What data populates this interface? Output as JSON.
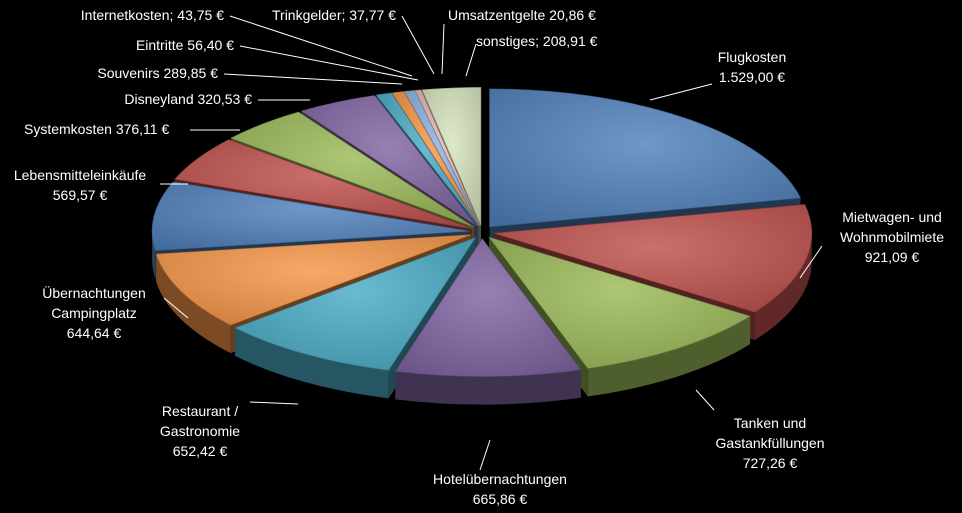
{
  "chart_data": {
    "type": "pie",
    "style": "exploded-3d",
    "title": "",
    "legend": "none",
    "slices": [
      {
        "name": "Flugkosten",
        "value": 1529.0,
        "label": [
          "Flugkosten",
          "1.529,00 €"
        ],
        "color": "#4f81bd"
      },
      {
        "name": "Mietwagen- und Wohnmobilmiete",
        "value": 921.09,
        "label": [
          "Mietwagen- und",
          "Wohnmobilmiete",
          "921,09 €"
        ],
        "color": "#c0504d"
      },
      {
        "name": "Tanken und Gastankfüllungen",
        "value": 727.26,
        "label": [
          "Tanken und",
          "Gastankfüllungen",
          "727,26 €"
        ],
        "color": "#9bbb59"
      },
      {
        "name": "Hotelübernachtungen",
        "value": 665.86,
        "label": [
          "Hotelübernachtungen",
          "665,86 €"
        ],
        "color": "#8064a2"
      },
      {
        "name": "Restaurant / Gastronomie",
        "value": 652.42,
        "label": [
          "Restaurant /",
          "Gastronomie",
          "652,42 €"
        ],
        "color": "#4bacc6"
      },
      {
        "name": "Übernachtungen Campingplatz",
        "value": 644.64,
        "label": [
          "Übernachtungen",
          "Campingplatz",
          "644,64 €"
        ],
        "color": "#f79646"
      },
      {
        "name": "Lebensmitteleinkäufe",
        "value": 569.57,
        "label": [
          "Lebensmitteleinkäufe",
          "569,57 €"
        ],
        "color": "#4f81bd"
      },
      {
        "name": "Systemkosten",
        "value": 376.11,
        "label": [
          "Systemkosten 376,11 €"
        ],
        "color": "#c0504d"
      },
      {
        "name": "Disneyland",
        "value": 320.53,
        "label": [
          "Disneyland 320,53 €"
        ],
        "color": "#9bbb59"
      },
      {
        "name": "Souvenirs",
        "value": 289.85,
        "label": [
          "Souvenirs 289,85 €"
        ],
        "color": "#8064a2"
      },
      {
        "name": "Eintritte",
        "value": 56.4,
        "label": [
          "Eintritte 56,40 €"
        ],
        "color": "#4bacc6"
      },
      {
        "name": "Internetkosten",
        "value": 43.75,
        "label": [
          "Internetkosten; 43,75 €"
        ],
        "color": "#f79646"
      },
      {
        "name": "Trinkgelder",
        "value": 37.77,
        "label": [
          "Trinkgelder; 37,77 €"
        ],
        "color": "#8db3e2"
      },
      {
        "name": "Umsatzentgelte",
        "value": 20.86,
        "label": [
          "Umsatzentgelte 20,86 €"
        ],
        "color": "#e6b9b8"
      },
      {
        "name": "sonstiges",
        "value": 208.91,
        "label": [
          "sonstiges; 208,91 €"
        ],
        "color": "#d7e4bd"
      }
    ]
  }
}
